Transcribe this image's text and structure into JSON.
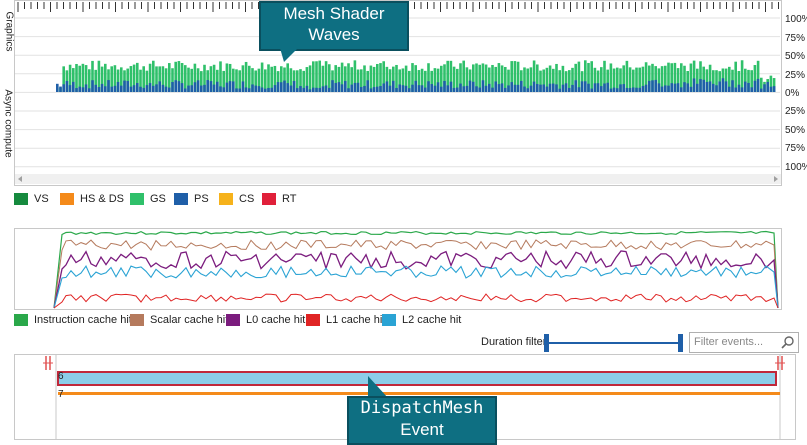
{
  "timeline": {
    "label_graphics": "Graphics",
    "label_async": "Async compute",
    "pct_labels_top": [
      "100%",
      "75%",
      "50%",
      "25%",
      "0%"
    ],
    "pct_labels_bottom": [
      "25%",
      "50%",
      "75%",
      "100%"
    ]
  },
  "wave_legend": [
    {
      "label": "VS",
      "color": "#168a3e"
    },
    {
      "label": "HS & DS",
      "color": "#f48a1a"
    },
    {
      "label": "GS",
      "color": "#2fc06a"
    },
    {
      "label": "PS",
      "color": "#1f5fa8"
    },
    {
      "label": "CS",
      "color": "#f6b21b"
    },
    {
      "label": "RT",
      "color": "#e0203a"
    }
  ],
  "cache_legend": [
    {
      "label": "Instruction cache hit",
      "color": "#2aa84a"
    },
    {
      "label": "Scalar cache hit",
      "color": "#b57a5d"
    },
    {
      "label": "L0 cache hit",
      "color": "#7b1c7e"
    },
    {
      "label": "L1 cache hit",
      "color": "#e02424"
    },
    {
      "label": "L2 cache hit",
      "color": "#2aa3d4"
    }
  ],
  "events": {
    "duration_filter_label": "Duration filter",
    "filter_placeholder": "Filter events...",
    "rows": [
      {
        "index": "6",
        "color": "#8ccde8",
        "border": "#c0283a"
      },
      {
        "index": "7",
        "color": "#f48a1a"
      }
    ]
  },
  "callouts": {
    "mesh_shader": [
      "Mesh Shader",
      "Waves"
    ],
    "dispatch_mesh": [
      "DispatchMesh",
      "Event"
    ]
  }
}
